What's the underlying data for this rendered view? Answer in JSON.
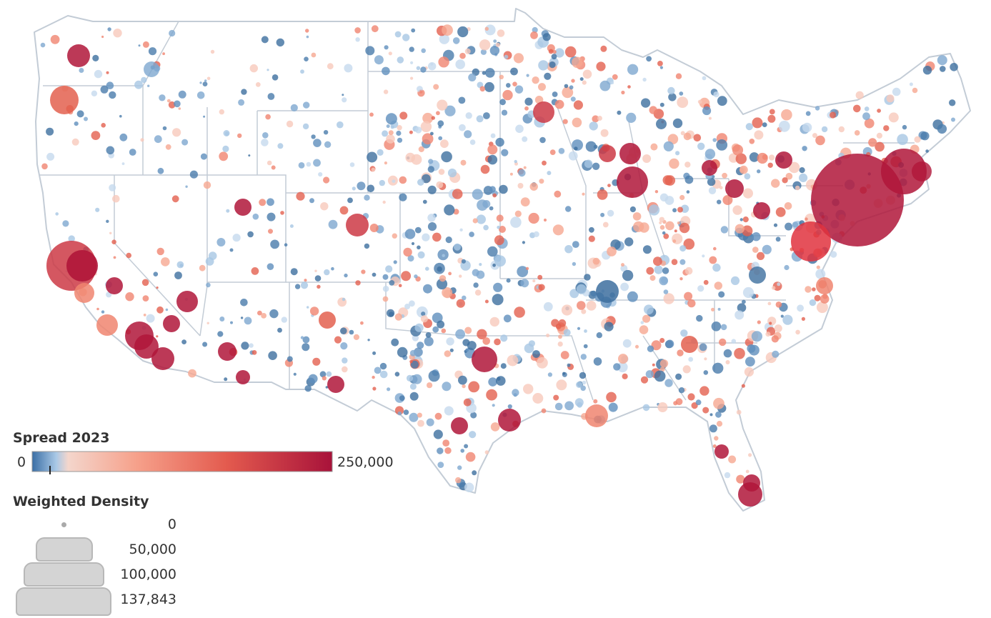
{
  "map": {
    "name": "US county bubble map",
    "bubble_color_low": "#4a78a8",
    "bubble_color_mid": "#f7c6b6",
    "bubble_color_high": "#b0163a",
    "border_color": "#c3ccd6"
  },
  "color_legend": {
    "title": "Spread 2023",
    "min_label": "0",
    "max_label": "250,000",
    "min_value": 0,
    "max_value": 250000
  },
  "size_legend": {
    "title": "Weighted Density",
    "items": [
      {
        "label": "0",
        "value": 0
      },
      {
        "label": "50,000",
        "value": 50000
      },
      {
        "label": "100,000",
        "value": 100000
      },
      {
        "label": "137,843",
        "value": 137843
      }
    ]
  }
}
